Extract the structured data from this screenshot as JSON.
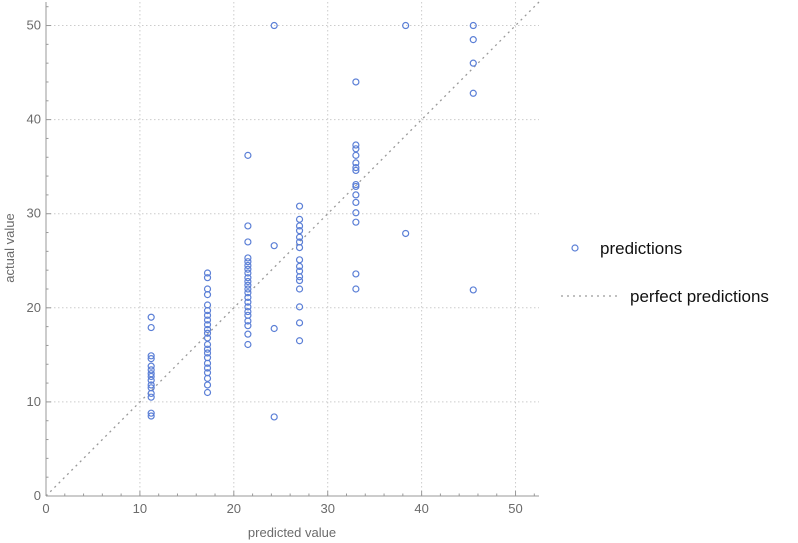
{
  "chart_data": {
    "type": "scatter",
    "xlabel": "predicted value",
    "ylabel": "actual value",
    "xlim": [
      0,
      52.5
    ],
    "ylim": [
      0,
      52.5
    ],
    "x_ticks": [
      0,
      10,
      20,
      30,
      40,
      50
    ],
    "y_ticks": [
      0,
      10,
      20,
      30,
      40,
      50
    ],
    "grid": true,
    "legend_position": "right",
    "colors": {
      "points": "#5b7fd6",
      "reference_line": "#9a9a9a",
      "grid": "#cccccc",
      "axis": "#999999"
    },
    "series": [
      {
        "name": "predictions",
        "marker": "open-circle",
        "points": [
          [
            11.2,
            19.0
          ],
          [
            11.2,
            17.9
          ],
          [
            11.2,
            14.9
          ],
          [
            11.2,
            14.6
          ],
          [
            11.2,
            13.8
          ],
          [
            11.2,
            13.4
          ],
          [
            11.2,
            13.0
          ],
          [
            11.2,
            12.7
          ],
          [
            11.2,
            12.3
          ],
          [
            11.2,
            11.8
          ],
          [
            11.2,
            11.5
          ],
          [
            11.2,
            10.9
          ],
          [
            11.2,
            10.5
          ],
          [
            11.2,
            8.8
          ],
          [
            11.2,
            8.5
          ],
          [
            17.2,
            23.7
          ],
          [
            17.2,
            23.2
          ],
          [
            17.2,
            22.0
          ],
          [
            17.2,
            21.4
          ],
          [
            17.2,
            20.3
          ],
          [
            17.2,
            19.7
          ],
          [
            17.2,
            19.2
          ],
          [
            17.2,
            18.7
          ],
          [
            17.2,
            18.2
          ],
          [
            17.2,
            17.7
          ],
          [
            17.2,
            17.3
          ],
          [
            17.2,
            16.8
          ],
          [
            17.2,
            16.1
          ],
          [
            17.2,
            15.6
          ],
          [
            17.2,
            15.2
          ],
          [
            17.2,
            14.7
          ],
          [
            17.2,
            14.1
          ],
          [
            17.2,
            13.6
          ],
          [
            17.2,
            13.1
          ],
          [
            17.2,
            12.5
          ],
          [
            17.2,
            11.8
          ],
          [
            17.2,
            11.0
          ],
          [
            21.5,
            36.2
          ],
          [
            21.5,
            28.7
          ],
          [
            21.5,
            27.0
          ],
          [
            21.5,
            25.3
          ],
          [
            21.5,
            24.9
          ],
          [
            21.5,
            24.5
          ],
          [
            21.5,
            24.1
          ],
          [
            21.5,
            23.7
          ],
          [
            21.5,
            23.2
          ],
          [
            21.5,
            22.8
          ],
          [
            21.5,
            22.4
          ],
          [
            21.5,
            22.0
          ],
          [
            21.5,
            21.6
          ],
          [
            21.5,
            21.1
          ],
          [
            21.5,
            20.6
          ],
          [
            21.5,
            20.1
          ],
          [
            21.5,
            19.6
          ],
          [
            21.5,
            19.2
          ],
          [
            21.5,
            18.6
          ],
          [
            21.5,
            18.1
          ],
          [
            21.5,
            17.2
          ],
          [
            21.5,
            16.1
          ],
          [
            24.3,
            50.0
          ],
          [
            24.3,
            26.6
          ],
          [
            24.3,
            17.8
          ],
          [
            24.3,
            8.4
          ],
          [
            27.0,
            30.8
          ],
          [
            27.0,
            29.4
          ],
          [
            27.0,
            28.7
          ],
          [
            27.0,
            28.2
          ],
          [
            27.0,
            27.5
          ],
          [
            27.0,
            27.0
          ],
          [
            27.0,
            26.4
          ],
          [
            27.0,
            25.1
          ],
          [
            27.0,
            24.4
          ],
          [
            27.0,
            23.9
          ],
          [
            27.0,
            23.3
          ],
          [
            27.0,
            22.9
          ],
          [
            27.0,
            22.0
          ],
          [
            27.0,
            20.1
          ],
          [
            27.0,
            18.4
          ],
          [
            27.0,
            16.5
          ],
          [
            33.0,
            44.0
          ],
          [
            33.0,
            37.3
          ],
          [
            33.0,
            36.9
          ],
          [
            33.0,
            36.2
          ],
          [
            33.0,
            35.4
          ],
          [
            33.0,
            34.9
          ],
          [
            33.0,
            34.6
          ],
          [
            33.0,
            33.1
          ],
          [
            33.0,
            32.9
          ],
          [
            33.0,
            32.0
          ],
          [
            33.0,
            31.2
          ],
          [
            33.0,
            30.1
          ],
          [
            33.0,
            29.1
          ],
          [
            33.0,
            23.6
          ],
          [
            33.0,
            22.0
          ],
          [
            38.3,
            50.0
          ],
          [
            38.3,
            27.9
          ],
          [
            45.5,
            50.0
          ],
          [
            45.5,
            48.5
          ],
          [
            45.5,
            46.0
          ],
          [
            45.5,
            42.8
          ],
          [
            45.5,
            21.9
          ]
        ]
      },
      {
        "name": "perfect predictions",
        "style": "dotted-line",
        "points": [
          [
            0,
            0
          ],
          [
            52.5,
            52.5
          ]
        ]
      }
    ]
  }
}
